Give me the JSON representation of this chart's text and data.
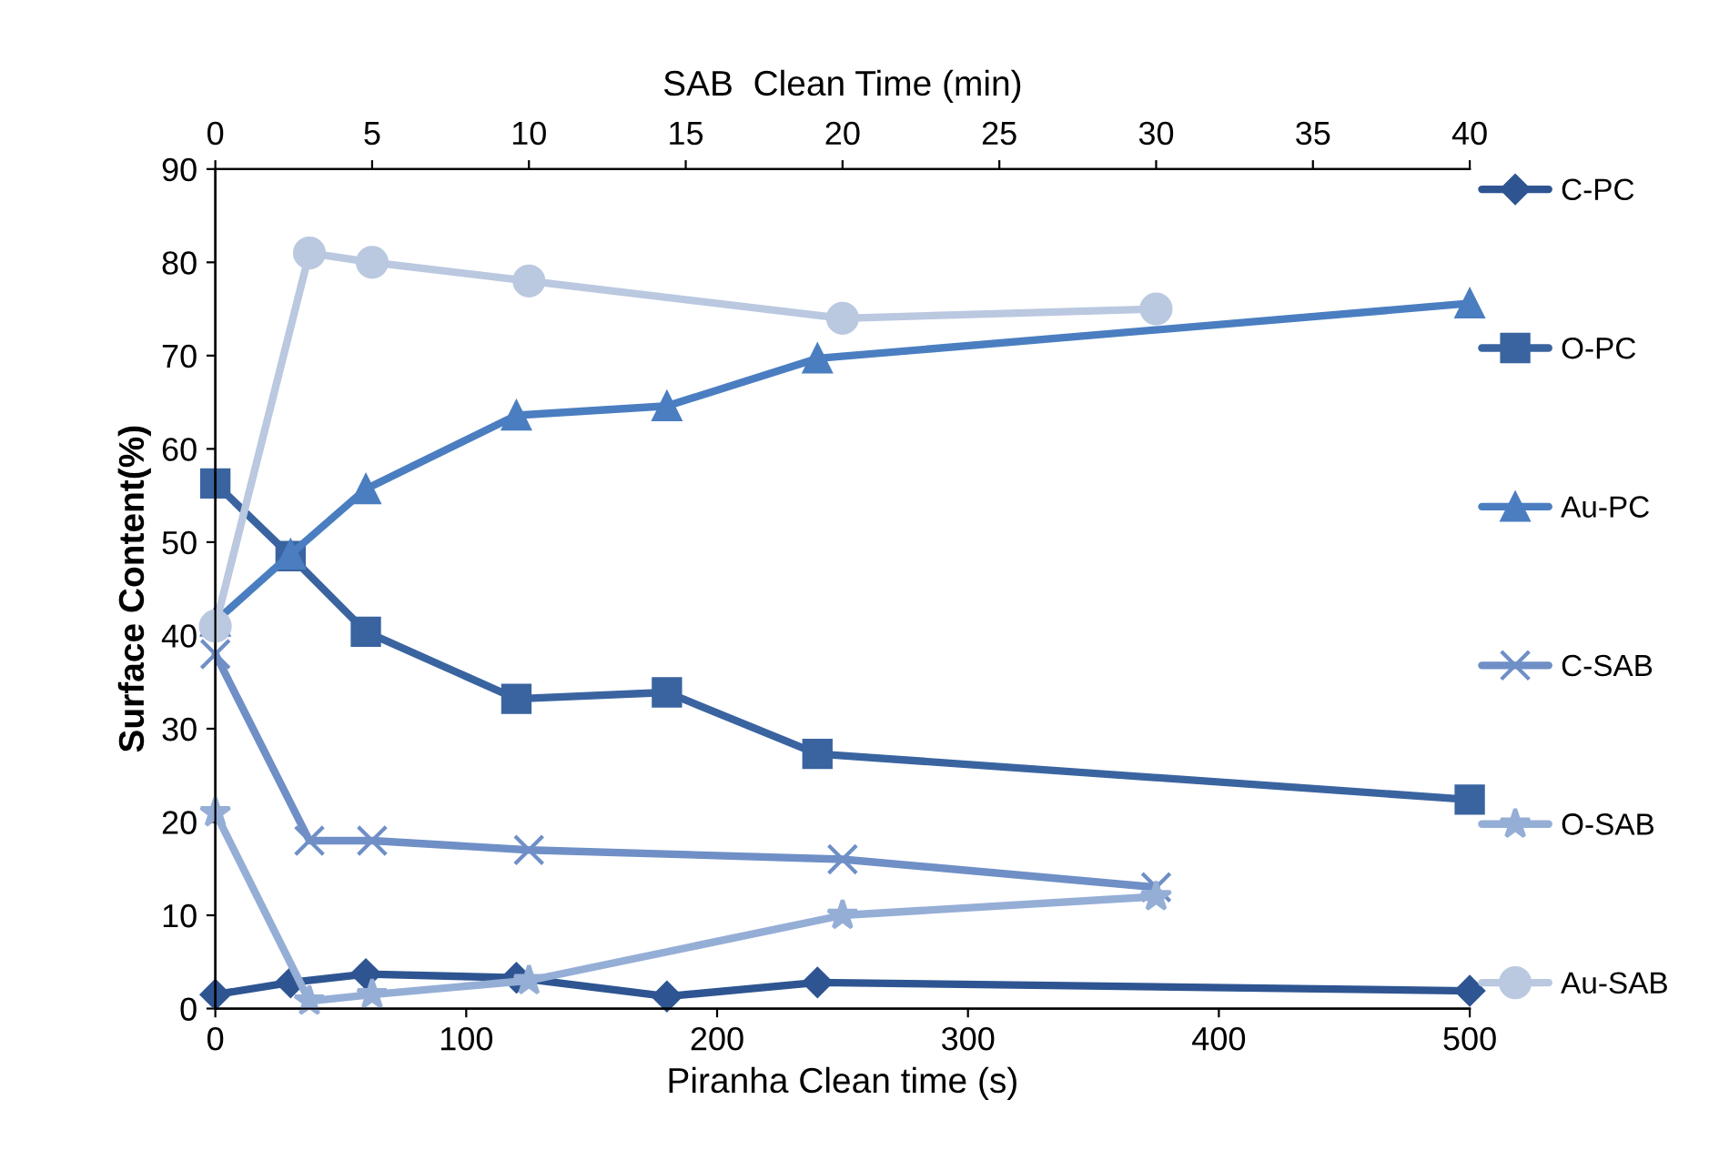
{
  "chart_data": {
    "type": "line",
    "xlabel": "Piranha Clean time (s)",
    "x2label": "SAB  Clean Time (min)",
    "ylabel": "Surface Content(%)",
    "xlim": [
      0,
      500
    ],
    "xticks": [
      0,
      100,
      200,
      300,
      400,
      500
    ],
    "x2lim": [
      0,
      40
    ],
    "x2ticks": [
      0,
      5,
      10,
      15,
      20,
      25,
      30,
      35,
      40
    ],
    "ylim": [
      0,
      90
    ],
    "yticks": [
      0,
      10,
      20,
      30,
      40,
      50,
      60,
      70,
      80,
      90
    ],
    "grid": false,
    "legend": "right",
    "line_style": "solid",
    "series": [
      {
        "name": "C-PC",
        "color": "#2e5591",
        "marker": "diamond",
        "x": [
          0,
          30,
          60,
          120,
          180,
          240,
          500
        ],
        "values": [
          1.5,
          2.8,
          3.7,
          3.3,
          1.3,
          2.8,
          1.9
        ]
      },
      {
        "name": "O-PC",
        "color": "#3a64a0",
        "marker": "square",
        "x": [
          0,
          30,
          60,
          120,
          180,
          240,
          500
        ],
        "values": [
          56.3,
          48.5,
          40.4,
          33.2,
          33.9,
          27.3,
          22.4
        ]
      },
      {
        "name": "Au-PC",
        "color": "#4a7ec0",
        "marker": "triangle",
        "x": [
          0,
          30,
          60,
          120,
          180,
          240,
          500
        ],
        "values": [
          41.5,
          48.7,
          55.7,
          63.6,
          64.6,
          69.7,
          75.6
        ]
      },
      {
        "name": "C-SAB",
        "color": "#6f8fc6",
        "marker": "cross",
        "axis": "x2",
        "x": [
          0,
          3,
          5,
          10,
          20,
          30
        ],
        "values": [
          38,
          18,
          18,
          17,
          16,
          13
        ]
      },
      {
        "name": "O-SAB",
        "color": "#95aed6",
        "marker": "star",
        "axis": "x2",
        "x": [
          0,
          3,
          5,
          10,
          20,
          30
        ],
        "values": [
          21,
          0.8,
          1.5,
          3,
          10,
          12
        ]
      },
      {
        "name": "Au-SAB",
        "color": "#bac8e0",
        "marker": "circle",
        "axis": "x2",
        "x": [
          0,
          3,
          5,
          10,
          20,
          30
        ],
        "values": [
          41,
          81,
          80,
          78,
          74,
          75
        ]
      }
    ]
  }
}
